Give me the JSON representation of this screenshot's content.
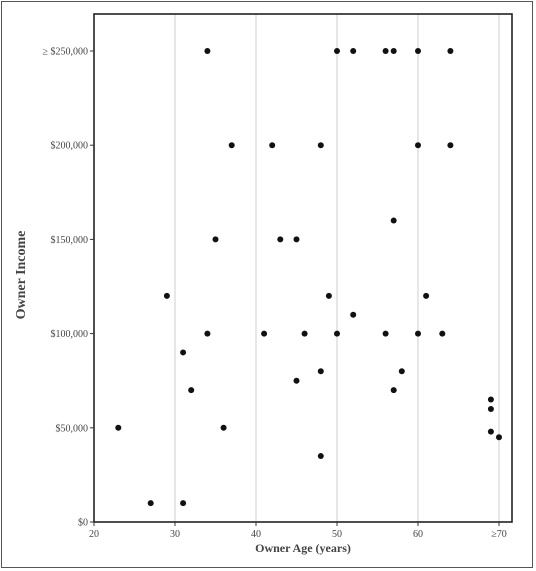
{
  "chart_data": {
    "type": "scatter",
    "title": "",
    "xlabel": "Owner Age (years)",
    "ylabel": "Owner Income",
    "xlim": [
      20,
      72
    ],
    "ylim": [
      0,
      275000
    ],
    "x_ticks": [
      20,
      30,
      40,
      50,
      60,
      70
    ],
    "x_tick_labels": [
      "20",
      "30",
      "40",
      "50",
      "60",
      "≥70"
    ],
    "y_ticks": [
      0,
      50000,
      100000,
      150000,
      200000,
      250000
    ],
    "y_tick_labels": [
      "$0",
      "$50,000",
      "$100,000",
      "$150,000",
      "$200,000",
      "≥ $250,000"
    ],
    "grid": "vertical",
    "marker_color": "#111111",
    "points": [
      {
        "x": 23,
        "y": 50000
      },
      {
        "x": 27,
        "y": 10000
      },
      {
        "x": 29,
        "y": 120000
      },
      {
        "x": 31,
        "y": 90000
      },
      {
        "x": 31,
        "y": 10000
      },
      {
        "x": 32,
        "y": 70000
      },
      {
        "x": 34,
        "y": 250000
      },
      {
        "x": 34,
        "y": 100000
      },
      {
        "x": 35,
        "y": 150000
      },
      {
        "x": 36,
        "y": 50000
      },
      {
        "x": 37,
        "y": 200000
      },
      {
        "x": 41,
        "y": 100000
      },
      {
        "x": 42,
        "y": 200000
      },
      {
        "x": 43,
        "y": 150000
      },
      {
        "x": 45,
        "y": 150000
      },
      {
        "x": 45,
        "y": 75000
      },
      {
        "x": 46,
        "y": 100000
      },
      {
        "x": 48,
        "y": 200000
      },
      {
        "x": 48,
        "y": 80000
      },
      {
        "x": 48,
        "y": 35000
      },
      {
        "x": 49,
        "y": 120000
      },
      {
        "x": 50,
        "y": 250000
      },
      {
        "x": 50,
        "y": 100000
      },
      {
        "x": 52,
        "y": 250000
      },
      {
        "x": 52,
        "y": 110000
      },
      {
        "x": 56,
        "y": 250000
      },
      {
        "x": 56,
        "y": 100000
      },
      {
        "x": 57,
        "y": 250000
      },
      {
        "x": 57,
        "y": 160000
      },
      {
        "x": 57,
        "y": 70000
      },
      {
        "x": 58,
        "y": 80000
      },
      {
        "x": 60,
        "y": 250000
      },
      {
        "x": 60,
        "y": 200000
      },
      {
        "x": 60,
        "y": 100000
      },
      {
        "x": 61,
        "y": 120000
      },
      {
        "x": 63,
        "y": 100000
      },
      {
        "x": 64,
        "y": 250000
      },
      {
        "x": 64,
        "y": 200000
      },
      {
        "x": 69,
        "y": 65000
      },
      {
        "x": 69,
        "y": 60000
      },
      {
        "x": 69,
        "y": 48000
      },
      {
        "x": 70,
        "y": 45000
      }
    ]
  }
}
